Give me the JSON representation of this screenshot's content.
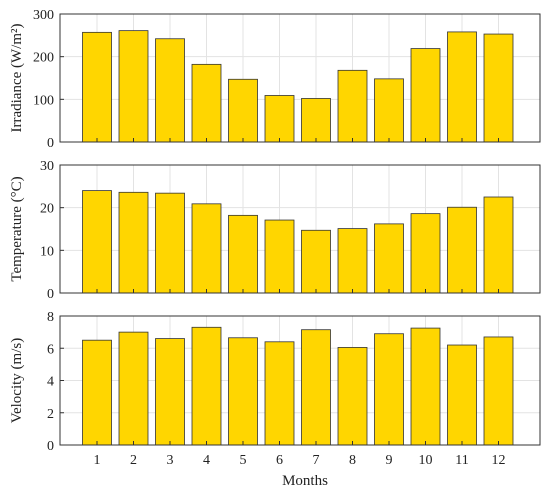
{
  "chart_data": [
    {
      "type": "bar",
      "categories": [
        "1",
        "2",
        "3",
        "4",
        "5",
        "6",
        "7",
        "8",
        "9",
        "10",
        "11",
        "12"
      ],
      "values": [
        257,
        261,
        242,
        182,
        147,
        109,
        102,
        168,
        148,
        219,
        258,
        253
      ],
      "xlabel": "",
      "ylabel": "Irradiance (W/m²)",
      "ylim": [
        0,
        300
      ],
      "yticks": [
        0,
        100,
        200,
        300
      ],
      "grid": true,
      "bar_color": "#FFD600"
    },
    {
      "type": "bar",
      "categories": [
        "1",
        "2",
        "3",
        "4",
        "5",
        "6",
        "7",
        "8",
        "9",
        "10",
        "11",
        "12"
      ],
      "values": [
        24.0,
        23.6,
        23.4,
        20.9,
        18.2,
        17.1,
        14.7,
        15.1,
        16.2,
        18.6,
        20.1,
        22.5
      ],
      "xlabel": "",
      "ylabel": "Temperature (°C)",
      "ylim": [
        0,
        30
      ],
      "yticks": [
        0,
        10,
        20,
        30
      ],
      "grid": true,
      "bar_color": "#FFD600"
    },
    {
      "type": "bar",
      "categories": [
        "1",
        "2",
        "3",
        "4",
        "5",
        "6",
        "7",
        "8",
        "9",
        "10",
        "11",
        "12"
      ],
      "values": [
        6.5,
        7.0,
        6.6,
        7.3,
        6.65,
        6.4,
        7.15,
        6.05,
        6.9,
        7.25,
        6.2,
        6.7
      ],
      "xlabel": "Months",
      "ylabel": "Velocity (m/s)",
      "ylim": [
        0,
        8
      ],
      "yticks": [
        0,
        2,
        4,
        6,
        8
      ],
      "grid": true,
      "bar_color": "#FFD600"
    }
  ]
}
